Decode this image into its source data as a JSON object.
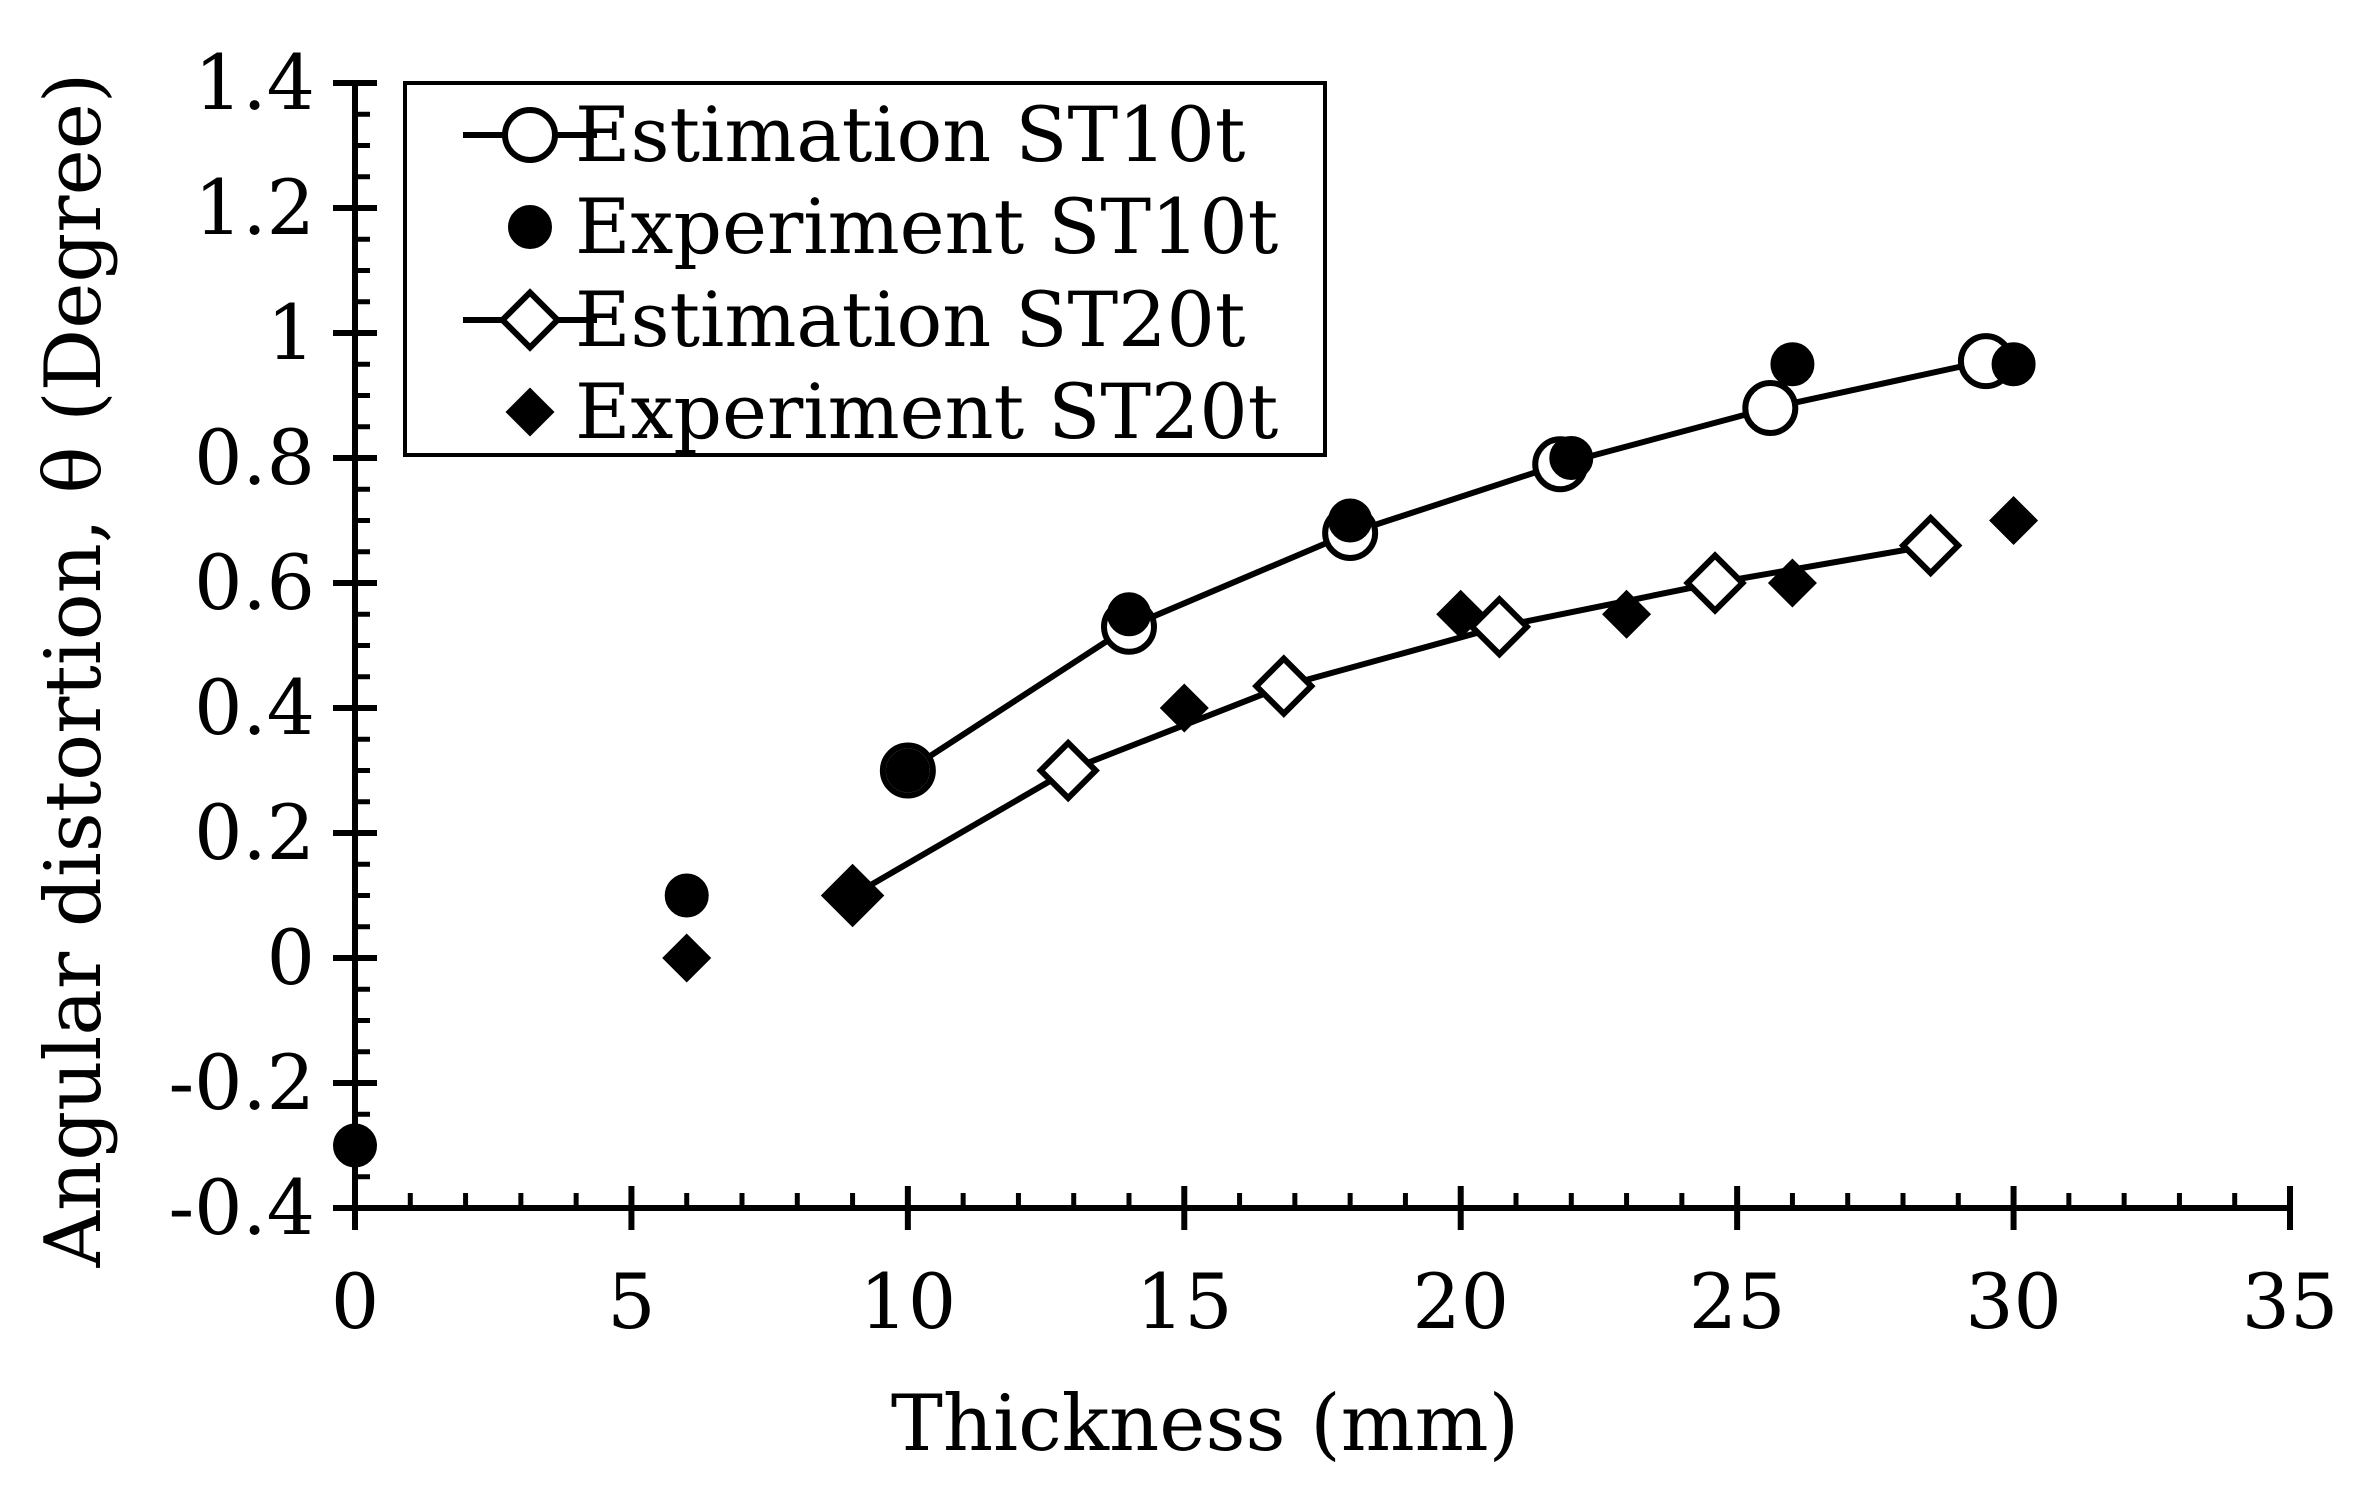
{
  "chart_data": {
    "type": "scatter",
    "xlabel": "Thickness (mm)",
    "ylabel": "Angular distortion, θ (Degree)",
    "xlim": [
      0,
      35
    ],
    "ylim": [
      -0.4,
      1.4
    ],
    "xticks": [
      0,
      5,
      10,
      15,
      20,
      25,
      30,
      35
    ],
    "yticks": [
      -0.4,
      -0.2,
      0,
      0.2,
      0.4,
      0.6,
      0.8,
      1,
      1.2,
      1.4
    ],
    "xtick_labels": [
      "0",
      "5",
      "10",
      "15",
      "20",
      "25",
      "30",
      "35"
    ],
    "ytick_labels": [
      "-0.4",
      "-0.2",
      "0",
      "0.2",
      "0.4",
      "0.6",
      "0.8",
      "1",
      "1.2",
      "1.4"
    ],
    "grid": false,
    "legend_position": "top-left",
    "series": [
      {
        "name": "Estimation ST10t",
        "style": "line+open-circle",
        "points": [
          [
            10,
            0.3
          ],
          [
            14,
            0.53
          ],
          [
            18,
            0.68
          ],
          [
            21.8,
            0.79
          ],
          [
            25.6,
            0.88
          ],
          [
            29.5,
            0.955
          ]
        ]
      },
      {
        "name": "Experiment ST10t",
        "style": "filled-circle",
        "points": [
          [
            0,
            -0.3
          ],
          [
            6,
            0.1
          ],
          [
            10,
            0.3
          ],
          [
            14,
            0.55
          ],
          [
            18,
            0.7
          ],
          [
            22,
            0.8
          ],
          [
            26,
            0.95
          ],
          [
            30,
            0.95
          ]
        ]
      },
      {
        "name": "Estimation ST20t",
        "style": "line+open-diamond",
        "points": [
          [
            9,
            0.1
          ],
          [
            12.9,
            0.3
          ],
          [
            16.8,
            0.435
          ],
          [
            20.7,
            0.53
          ],
          [
            24.6,
            0.6
          ],
          [
            28.5,
            0.66
          ]
        ]
      },
      {
        "name": "Experiment ST20t",
        "style": "filled-diamond",
        "points": [
          [
            6,
            0
          ],
          [
            9,
            0.1
          ],
          [
            15,
            0.4
          ],
          [
            20,
            0.55
          ],
          [
            23,
            0.55
          ],
          [
            26,
            0.6
          ],
          [
            30,
            0.7
          ]
        ]
      }
    ]
  }
}
